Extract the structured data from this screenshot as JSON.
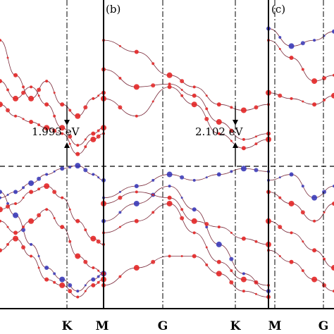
{
  "chart_data": [
    {
      "type": "line",
      "panel_label": "",
      "title": "",
      "xlabel": "",
      "ylabel": "",
      "x_ticks": [
        "K",
        "M"
      ],
      "band_gap_label": "1.993 eV",
      "series": [
        {
          "color": "#e32626",
          "values": [
            [
              0.0,
              0.92
            ],
            [
              0.15,
              0.8
            ],
            [
              0.3,
              0.72
            ],
            [
              0.45,
              0.78
            ],
            [
              0.6,
              0.7
            ],
            [
              0.75,
              0.66
            ],
            [
              0.9,
              0.72
            ],
            [
              1.0,
              0.74
            ]
          ]
        },
        {
          "color": "#e32626",
          "values": [
            [
              0.0,
              0.78
            ],
            [
              0.15,
              0.72
            ],
            [
              0.3,
              0.76
            ],
            [
              0.45,
              0.7
            ],
            [
              0.6,
              0.62
            ],
            [
              0.75,
              0.56
            ],
            [
              0.9,
              0.6
            ],
            [
              1.0,
              0.62
            ]
          ]
        },
        {
          "color": "#e32626",
          "values": [
            [
              0.0,
              0.7
            ],
            [
              0.15,
              0.66
            ],
            [
              0.3,
              0.64
            ],
            [
              0.45,
              0.62
            ],
            [
              0.6,
              0.6
            ],
            [
              0.75,
              0.53
            ],
            [
              0.9,
              0.58
            ],
            [
              1.0,
              0.6
            ]
          ]
        },
        {
          "color": "#3a3ab8",
          "values": [
            [
              0.0,
              0.38
            ],
            [
              0.15,
              0.4
            ],
            [
              0.3,
              0.43
            ],
            [
              0.45,
              0.46
            ],
            [
              0.6,
              0.48
            ],
            [
              0.75,
              0.49
            ],
            [
              0.9,
              0.46
            ],
            [
              1.0,
              0.44
            ]
          ]
        },
        {
          "color": "#3a3ab8",
          "values": [
            [
              0.0,
              0.4
            ],
            [
              0.15,
              0.32
            ],
            [
              0.3,
              0.22
            ],
            [
              0.45,
              0.14
            ],
            [
              0.6,
              0.1
            ],
            [
              0.75,
              0.06
            ],
            [
              0.9,
              0.1
            ],
            [
              1.0,
              0.12
            ]
          ]
        },
        {
          "color": "#e32626",
          "values": [
            [
              0.0,
              0.34
            ],
            [
              0.15,
              0.36
            ],
            [
              0.3,
              0.4
            ],
            [
              0.45,
              0.42
            ],
            [
              0.6,
              0.38
            ],
            [
              0.75,
              0.3
            ],
            [
              0.9,
              0.24
            ],
            [
              1.0,
              0.22
            ]
          ]
        },
        {
          "color": "#e32626",
          "values": [
            [
              0.0,
              0.3
            ],
            [
              0.15,
              0.26
            ],
            [
              0.3,
              0.3
            ],
            [
              0.45,
              0.34
            ],
            [
              0.6,
              0.28
            ],
            [
              0.75,
              0.18
            ],
            [
              0.9,
              0.14
            ],
            [
              1.0,
              0.12
            ]
          ]
        },
        {
          "color": "#e32626",
          "values": [
            [
              0.0,
              0.2
            ],
            [
              0.15,
              0.24
            ],
            [
              0.3,
              0.18
            ],
            [
              0.45,
              0.1
            ],
            [
              0.6,
              0.08
            ],
            [
              0.75,
              0.04
            ],
            [
              0.9,
              0.08
            ],
            [
              1.0,
              0.1
            ]
          ]
        }
      ]
    },
    {
      "type": "line",
      "panel_label": "(b)",
      "title": "",
      "xlabel": "",
      "ylabel": "",
      "x_ticks": [
        "G",
        "K"
      ],
      "band_gap_label": "2.102 eV",
      "series": [
        {
          "color": "#e32626",
          "values": [
            [
              0.0,
              0.92
            ],
            [
              0.2,
              0.88
            ],
            [
              0.4,
              0.8
            ],
            [
              0.55,
              0.76
            ],
            [
              0.7,
              0.7
            ],
            [
              0.85,
              0.68
            ],
            [
              1.0,
              0.7
            ]
          ]
        },
        {
          "color": "#e32626",
          "values": [
            [
              0.0,
              0.82
            ],
            [
              0.2,
              0.76
            ],
            [
              0.4,
              0.77
            ],
            [
              0.55,
              0.73
            ],
            [
              0.7,
              0.64
            ],
            [
              0.85,
              0.58
            ],
            [
              1.0,
              0.6
            ]
          ]
        },
        {
          "color": "#e32626",
          "values": [
            [
              0.0,
              0.72
            ],
            [
              0.2,
              0.66
            ],
            [
              0.4,
              0.76
            ],
            [
              0.55,
              0.7
            ],
            [
              0.7,
              0.6
            ],
            [
              0.85,
              0.55
            ],
            [
              1.0,
              0.58
            ]
          ]
        },
        {
          "color": "#3a3ab8",
          "values": [
            [
              0.0,
              0.38
            ],
            [
              0.2,
              0.42
            ],
            [
              0.4,
              0.46
            ],
            [
              0.55,
              0.44
            ],
            [
              0.7,
              0.46
            ],
            [
              0.85,
              0.48
            ],
            [
              1.0,
              0.47
            ]
          ]
        },
        {
          "color": "#3a3ab8",
          "values": [
            [
              0.0,
              0.3
            ],
            [
              0.2,
              0.36
            ],
            [
              0.4,
              0.42
            ],
            [
              0.55,
              0.34
            ],
            [
              0.7,
              0.22
            ],
            [
              0.85,
              0.12
            ],
            [
              1.0,
              0.06
            ]
          ]
        },
        {
          "color": "#e32626",
          "values": [
            [
              0.0,
              0.36
            ],
            [
              0.2,
              0.4
            ],
            [
              0.4,
              0.38
            ],
            [
              0.55,
              0.3
            ],
            [
              0.7,
              0.28
            ],
            [
              0.85,
              0.24
            ],
            [
              1.0,
              0.22
            ]
          ]
        },
        {
          "color": "#e32626",
          "values": [
            [
              0.0,
              0.26
            ],
            [
              0.2,
              0.3
            ],
            [
              0.4,
              0.36
            ],
            [
              0.55,
              0.26
            ],
            [
              0.7,
              0.16
            ],
            [
              0.85,
              0.1
            ],
            [
              1.0,
              0.08
            ]
          ]
        },
        {
          "color": "#e32626",
          "values": [
            [
              0.0,
              0.08
            ],
            [
              0.2,
              0.14
            ],
            [
              0.4,
              0.18
            ],
            [
              0.55,
              0.18
            ],
            [
              0.7,
              0.12
            ],
            [
              0.85,
              0.06
            ],
            [
              1.0,
              0.04
            ]
          ]
        }
      ]
    },
    {
      "type": "line",
      "panel_label": "(c)",
      "title": "",
      "xlabel": "",
      "ylabel": "",
      "x_ticks": [
        "M",
        "G"
      ],
      "band_gap_label": "",
      "series": [
        {
          "color": "#e32626",
          "values": [
            [
              0.0,
              0.92
            ],
            [
              0.35,
              0.86
            ],
            [
              0.7,
              0.78
            ],
            [
              1.0,
              0.8
            ]
          ]
        },
        {
          "color": "#3a3ab8",
          "values": [
            [
              0.0,
              0.96
            ],
            [
              0.35,
              0.9
            ],
            [
              0.7,
              0.92
            ],
            [
              1.0,
              0.95
            ]
          ]
        },
        {
          "color": "#e32626",
          "values": [
            [
              0.0,
              0.74
            ],
            [
              0.35,
              0.72
            ],
            [
              0.7,
              0.7
            ],
            [
              1.0,
              0.73
            ]
          ]
        },
        {
          "color": "#3a3ab8",
          "values": [
            [
              0.0,
              0.44
            ],
            [
              0.35,
              0.46
            ],
            [
              0.7,
              0.38
            ],
            [
              1.0,
              0.42
            ]
          ]
        },
        {
          "color": "#e32626",
          "values": [
            [
              0.0,
              0.4
            ],
            [
              0.35,
              0.36
            ],
            [
              0.7,
              0.3
            ],
            [
              1.0,
              0.36
            ]
          ]
        },
        {
          "color": "#e32626",
          "values": [
            [
              0.0,
              0.3
            ],
            [
              0.35,
              0.26
            ],
            [
              0.7,
              0.2
            ],
            [
              1.0,
              0.14
            ]
          ]
        },
        {
          "color": "#e32626",
          "values": [
            [
              0.0,
              0.2
            ],
            [
              0.35,
              0.16
            ],
            [
              0.7,
              0.1
            ],
            [
              1.0,
              0.06
            ]
          ]
        }
      ]
    }
  ]
}
